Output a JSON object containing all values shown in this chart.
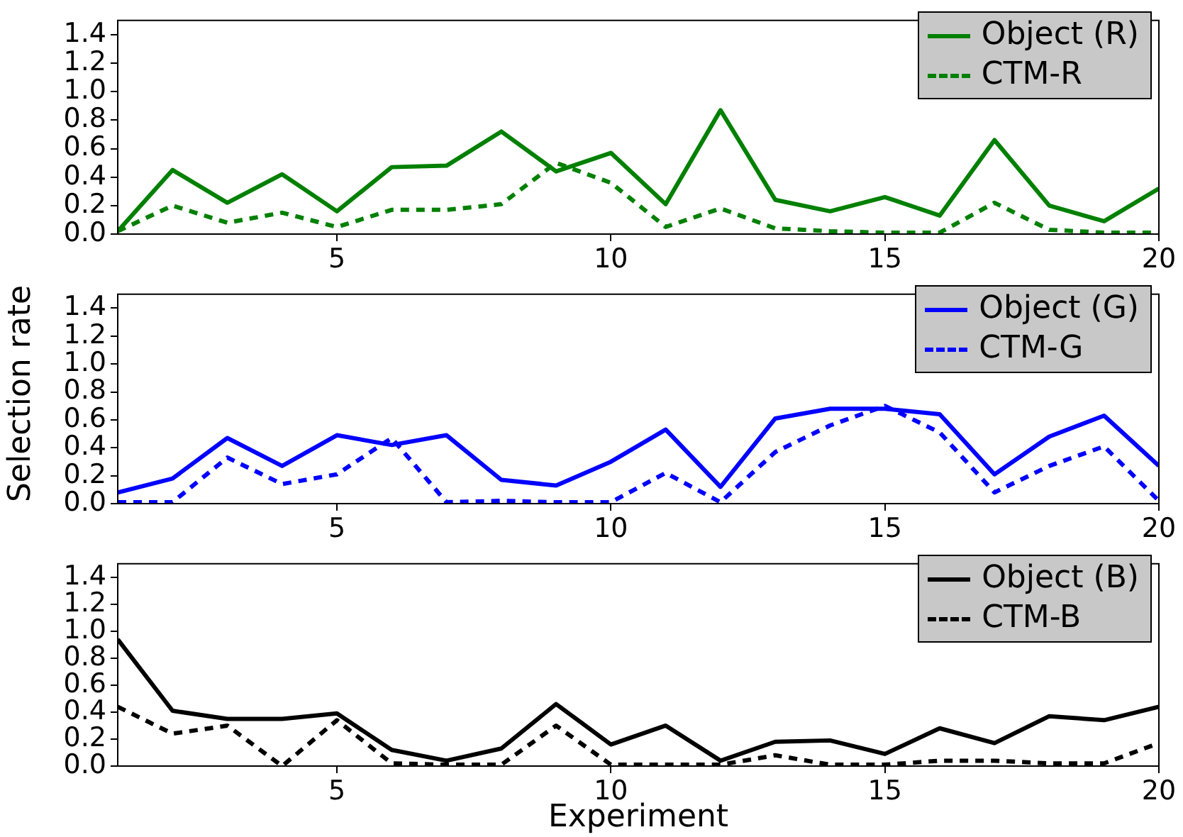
{
  "chart_data": [
    {
      "type": "line",
      "x": [
        1,
        2,
        3,
        4,
        5,
        6,
        7,
        8,
        9,
        10,
        11,
        12,
        13,
        14,
        15,
        16,
        17,
        18,
        19,
        20
      ],
      "xlim": [
        1,
        20
      ],
      "xticks": [
        5,
        10,
        15,
        20
      ],
      "ylim": [
        0,
        1.5
      ],
      "yticks": [
        {
          "value": 0,
          "label": "0.0"
        },
        {
          "value": 0.2,
          "label": "0.2"
        },
        {
          "value": 0.4,
          "label": "0.4"
        },
        {
          "value": 0.6,
          "label": "0.6"
        },
        {
          "value": 0.8,
          "label": "0.8"
        },
        {
          "value": 1,
          "label": "1.0"
        },
        {
          "value": 1.2,
          "label": "1.2"
        },
        {
          "value": 1.4,
          "label": "1.4"
        }
      ],
      "grid": false,
      "legend": "top right",
      "marker": "none",
      "series": [
        {
          "name": "Object (R)",
          "color": "#008000",
          "line_style": "solid",
          "values": [
            0.02,
            0.45,
            0.22,
            0.42,
            0.16,
            0.47,
            0.48,
            0.72,
            0.44,
            0.57,
            0.21,
            0.87,
            0.24,
            0.16,
            0.26,
            0.13,
            0.66,
            0.2,
            0.09,
            0.32
          ]
        },
        {
          "name": "CTM-R",
          "color": "#008000",
          "line_style": "dashed",
          "values": [
            0.02,
            0.2,
            0.08,
            0.15,
            0.05,
            0.17,
            0.17,
            0.21,
            0.5,
            0.36,
            0.05,
            0.18,
            0.04,
            0.02,
            0.01,
            0.01,
            0.22,
            0.03,
            0.01,
            0.01
          ]
        }
      ]
    },
    {
      "type": "line",
      "ylabel": "Selection rate",
      "x": [
        1,
        2,
        3,
        4,
        5,
        6,
        7,
        8,
        9,
        10,
        11,
        12,
        13,
        14,
        15,
        16,
        17,
        18,
        19,
        20
      ],
      "xlim": [
        1,
        20
      ],
      "xticks": [
        5,
        10,
        15,
        20
      ],
      "ylim": [
        0,
        1.5
      ],
      "yticks": [
        {
          "value": 0,
          "label": "0.0"
        },
        {
          "value": 0.2,
          "label": "0.2"
        },
        {
          "value": 0.4,
          "label": "0.4"
        },
        {
          "value": 0.6,
          "label": "0.6"
        },
        {
          "value": 0.8,
          "label": "0.8"
        },
        {
          "value": 1,
          "label": "1.0"
        },
        {
          "value": 1.2,
          "label": "1.2"
        },
        {
          "value": 1.4,
          "label": "1.4"
        }
      ],
      "grid": false,
      "legend": "top right",
      "marker": "none",
      "series": [
        {
          "name": "Object (G)",
          "color": "#0000ff",
          "line_style": "solid",
          "values": [
            0.08,
            0.18,
            0.47,
            0.27,
            0.49,
            0.42,
            0.49,
            0.17,
            0.13,
            0.3,
            0.53,
            0.12,
            0.61,
            0.68,
            0.68,
            0.64,
            0.21,
            0.48,
            0.63,
            0.27
          ]
        },
        {
          "name": "CTM-G",
          "color": "#0000ff",
          "line_style": "dashed",
          "values": [
            0.01,
            0.01,
            0.33,
            0.14,
            0.21,
            0.47,
            0.01,
            0.02,
            0.01,
            0.01,
            0.22,
            0.01,
            0.37,
            0.56,
            0.7,
            0.51,
            0.08,
            0.27,
            0.41,
            0.02
          ]
        }
      ]
    },
    {
      "type": "line",
      "xlabel": "Experiment",
      "x": [
        1,
        2,
        3,
        4,
        5,
        6,
        7,
        8,
        9,
        10,
        11,
        12,
        13,
        14,
        15,
        16,
        17,
        18,
        19,
        20
      ],
      "xlim": [
        1,
        20
      ],
      "xticks": [
        5,
        10,
        15,
        20
      ],
      "ylim": [
        0,
        1.5
      ],
      "yticks": [
        {
          "value": 0,
          "label": "0.0"
        },
        {
          "value": 0.2,
          "label": "0.2"
        },
        {
          "value": 0.4,
          "label": "0.4"
        },
        {
          "value": 0.6,
          "label": "0.6"
        },
        {
          "value": 0.8,
          "label": "0.8"
        },
        {
          "value": 1,
          "label": "1.0"
        },
        {
          "value": 1.2,
          "label": "1.2"
        },
        {
          "value": 1.4,
          "label": "1.4"
        }
      ],
      "grid": false,
      "legend": "top right",
      "marker": "none",
      "series": [
        {
          "name": "Object (B)",
          "color": "#000000",
          "line_style": "solid",
          "values": [
            0.94,
            0.41,
            0.35,
            0.35,
            0.39,
            0.12,
            0.04,
            0.13,
            0.46,
            0.16,
            0.3,
            0.04,
            0.18,
            0.19,
            0.09,
            0.28,
            0.17,
            0.37,
            0.34,
            0.44
          ]
        },
        {
          "name": "CTM-B",
          "color": "#000000",
          "line_style": "dashed",
          "values": [
            0.44,
            0.24,
            0.3,
            0,
            0.34,
            0.02,
            0.01,
            0.01,
            0.3,
            0.01,
            0.01,
            0.01,
            0.08,
            0.01,
            0.01,
            0.04,
            0.04,
            0.02,
            0.02,
            0.17
          ]
        }
      ]
    }
  ]
}
